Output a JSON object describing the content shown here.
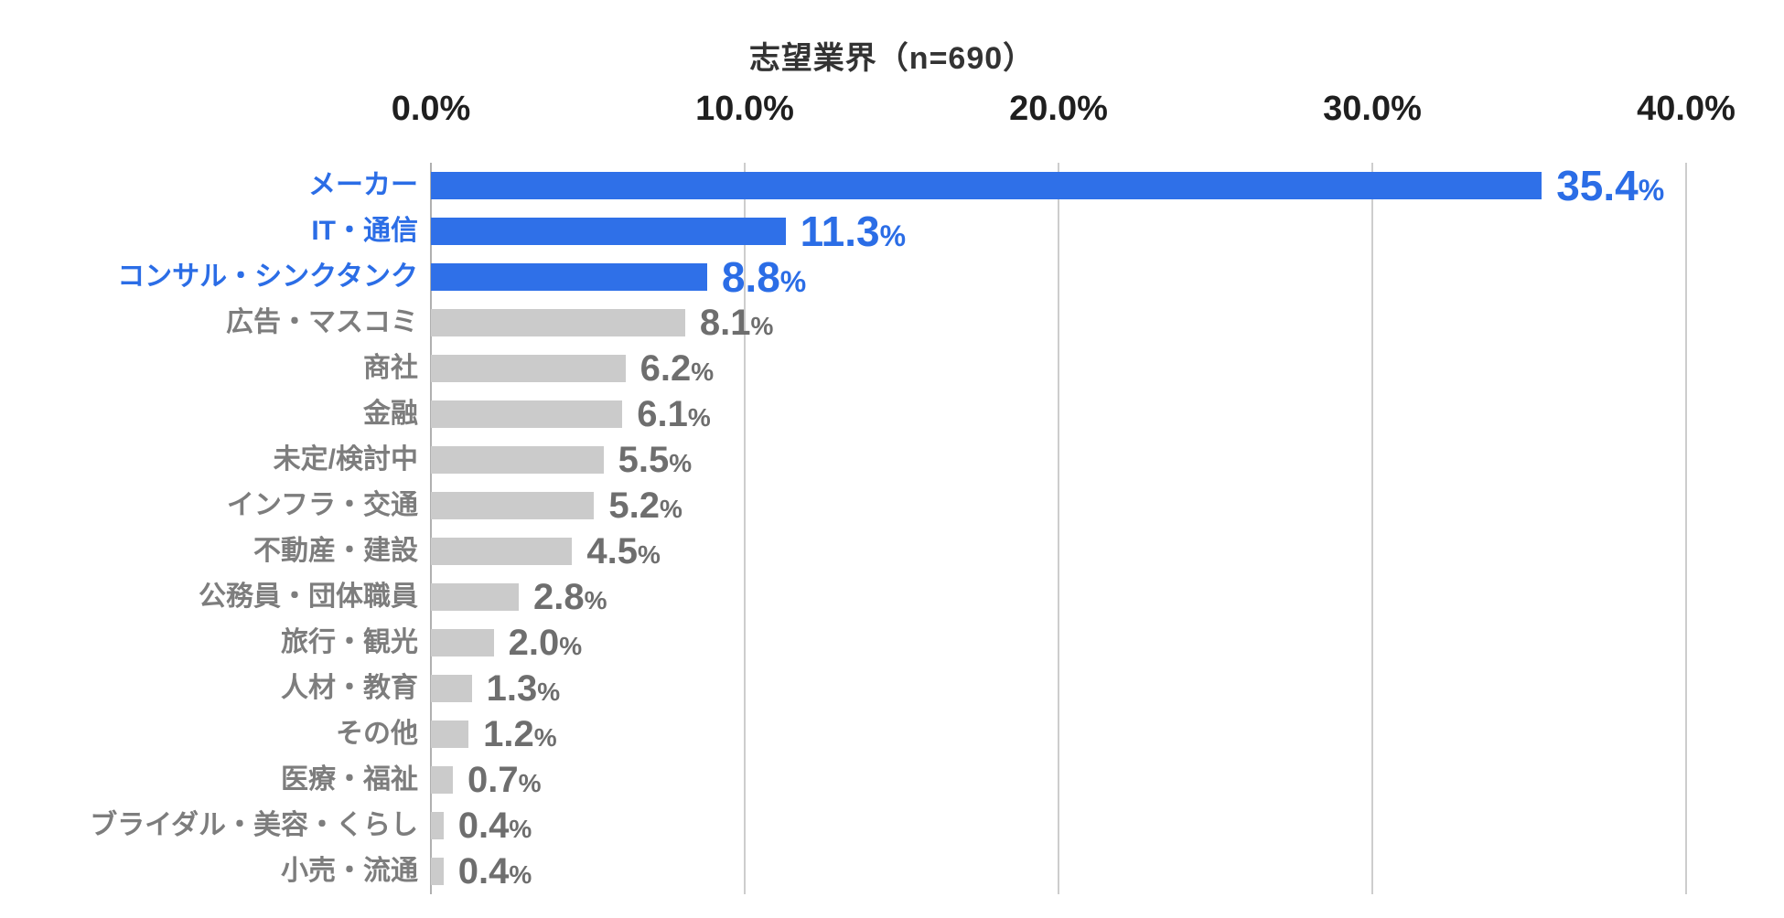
{
  "chart_data": {
    "type": "bar",
    "orientation": "horizontal",
    "title": "志望業界（n=690）",
    "sample_size_note": "n=690",
    "categories": [
      "メーカー",
      "IT・通信",
      "コンサル・シンクタンク",
      "広告・マスコミ",
      "商社",
      "金融",
      "未定/検討中",
      "インフラ・交通",
      "不動産・建設",
      "公務員・団体職員",
      "旅行・観光",
      "人材・教育",
      "その他",
      "医療・福祉",
      "ブライダル・美容・くらし",
      "小売・流通"
    ],
    "values": [
      35.4,
      11.3,
      8.8,
      8.1,
      6.2,
      6.1,
      5.5,
      5.2,
      4.5,
      2.8,
      2.0,
      1.3,
      1.2,
      0.7,
      0.4,
      0.4
    ],
    "value_labels": [
      "35.4%",
      "11.3%",
      "8.8%",
      "8.1%",
      "6.2%",
      "6.1%",
      "5.5%",
      "5.2%",
      "4.5%",
      "2.8%",
      "2.0%",
      "1.3%",
      "1.2%",
      "0.7%",
      "0.4%",
      "0.4%"
    ],
    "value_suffix": "%",
    "highlighted": [
      true,
      true,
      true,
      false,
      false,
      false,
      false,
      false,
      false,
      false,
      false,
      false,
      false,
      false,
      false,
      false
    ],
    "x_axis": {
      "position": "top",
      "min": 0,
      "max": 40,
      "tick_values": [
        0,
        10,
        20,
        30,
        40
      ],
      "ticks": [
        "0.0%",
        "10.0%",
        "20.0%",
        "30.0%",
        "40.0%"
      ],
      "grid": true
    },
    "legend": null,
    "colors": {
      "highlight_bar": "#2F70E8",
      "default_bar": "#CBCBCB",
      "highlight_text": "#2B6DE6",
      "category_text": "#7D7D7D",
      "value_text": "#6E6E6E",
      "axis_tick_text": "#1F1F1F",
      "title_text": "#333333",
      "gridline": "#CDCDCD",
      "axis_line": "#B0B0B0",
      "background": "#FFFFFF"
    }
  }
}
